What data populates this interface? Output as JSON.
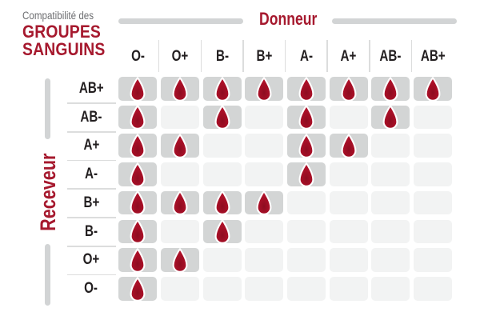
{
  "header": {
    "subtitle": "Compatibilité des",
    "title_line1": "GROUPES",
    "title_line2": "SANGUINS"
  },
  "axes": {
    "donor_label": "Donneur",
    "receiver_label": "Receveur"
  },
  "donors": [
    "O-",
    "O+",
    "B-",
    "B+",
    "A-",
    "A+",
    "AB-",
    "AB+"
  ],
  "receivers": [
    "AB+",
    "AB-",
    "A+",
    "A-",
    "B+",
    "B-",
    "O+",
    "O-"
  ],
  "chart_data": {
    "type": "table",
    "title": "Compatibilité des groupes sanguins",
    "columns_label": "Donneur",
    "rows_label": "Receveur",
    "columns": [
      "O-",
      "O+",
      "B-",
      "B+",
      "A-",
      "A+",
      "AB-",
      "AB+"
    ],
    "rows": [
      "AB+",
      "AB-",
      "A+",
      "A-",
      "B+",
      "B-",
      "O+",
      "O-"
    ],
    "values": [
      [
        1,
        1,
        1,
        1,
        1,
        1,
        1,
        1
      ],
      [
        1,
        0,
        1,
        0,
        1,
        0,
        1,
        0
      ],
      [
        1,
        1,
        0,
        0,
        1,
        1,
        0,
        0
      ],
      [
        1,
        0,
        0,
        0,
        1,
        0,
        0,
        0
      ],
      [
        1,
        1,
        1,
        1,
        0,
        0,
        0,
        0
      ],
      [
        1,
        0,
        1,
        0,
        0,
        0,
        0,
        0
      ],
      [
        1,
        1,
        0,
        0,
        0,
        0,
        0,
        0
      ],
      [
        1,
        0,
        0,
        0,
        0,
        0,
        0,
        0
      ]
    ],
    "cell_encoding": "1 = compatible (goutte de sang affichée), 0 = incompatible (case vide)"
  },
  "icons": {
    "compatible": "blood-drop-icon"
  },
  "colors": {
    "background": "#ffffff",
    "accent_red": "#a6192e",
    "title_gray": "#6d6e71",
    "header_text": "#231f20",
    "cell_filled": "#d3d5d5",
    "cell_empty": "#f2f3f3",
    "separator": "#dcdddd",
    "bar_gray": "#d2d4d5",
    "drop_red": "#b5122b",
    "drop_mid": "#a50f26",
    "drop_dark": "#8e0c20",
    "drop_outline": "#ffffff"
  }
}
